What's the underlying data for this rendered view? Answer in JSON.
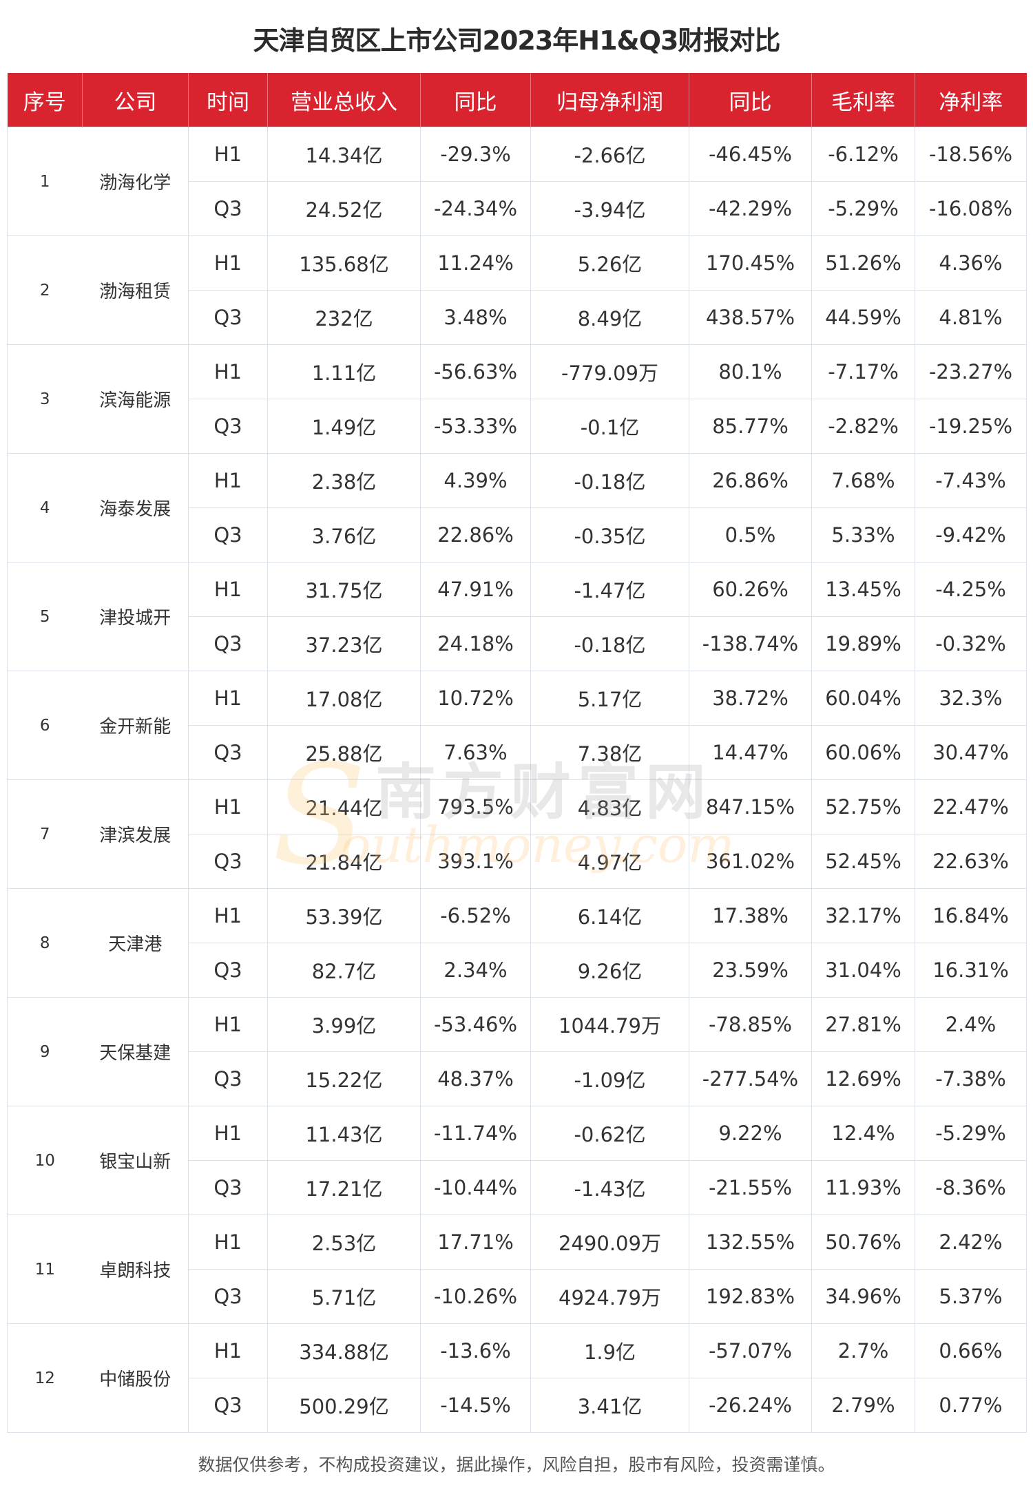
{
  "title": "天津自贸区上市公司2023年H1&Q3财报对比",
  "columns": [
    "序号",
    "公司",
    "时间",
    "营业总收入",
    "同比",
    "归母净利润",
    "同比",
    "毛利率",
    "净利率"
  ],
  "rows": [
    {
      "index": "1",
      "company": "渤海化学",
      "periods": [
        {
          "time": "H1",
          "revenue": "14.34亿",
          "revenue_yoy": "-29.3%",
          "net_profit": "-2.66亿",
          "profit_yoy": "-46.45%",
          "gross_margin": "-6.12%",
          "net_margin": "-18.56%"
        },
        {
          "time": "Q3",
          "revenue": "24.52亿",
          "revenue_yoy": "-24.34%",
          "net_profit": "-3.94亿",
          "profit_yoy": "-42.29%",
          "gross_margin": "-5.29%",
          "net_margin": "-16.08%"
        }
      ]
    },
    {
      "index": "2",
      "company": "渤海租赁",
      "periods": [
        {
          "time": "H1",
          "revenue": "135.68亿",
          "revenue_yoy": "11.24%",
          "net_profit": "5.26亿",
          "profit_yoy": "170.45%",
          "gross_margin": "51.26%",
          "net_margin": "4.36%"
        },
        {
          "time": "Q3",
          "revenue": "232亿",
          "revenue_yoy": "3.48%",
          "net_profit": "8.49亿",
          "profit_yoy": "438.57%",
          "gross_margin": "44.59%",
          "net_margin": "4.81%"
        }
      ]
    },
    {
      "index": "3",
      "company": "滨海能源",
      "periods": [
        {
          "time": "H1",
          "revenue": "1.11亿",
          "revenue_yoy": "-56.63%",
          "net_profit": "-779.09万",
          "profit_yoy": "80.1%",
          "gross_margin": "-7.17%",
          "net_margin": "-23.27%"
        },
        {
          "time": "Q3",
          "revenue": "1.49亿",
          "revenue_yoy": "-53.33%",
          "net_profit": "-0.1亿",
          "profit_yoy": "85.77%",
          "gross_margin": "-2.82%",
          "net_margin": "-19.25%"
        }
      ]
    },
    {
      "index": "4",
      "company": "海泰发展",
      "periods": [
        {
          "time": "H1",
          "revenue": "2.38亿",
          "revenue_yoy": "4.39%",
          "net_profit": "-0.18亿",
          "profit_yoy": "26.86%",
          "gross_margin": "7.68%",
          "net_margin": "-7.43%"
        },
        {
          "time": "Q3",
          "revenue": "3.76亿",
          "revenue_yoy": "22.86%",
          "net_profit": "-0.35亿",
          "profit_yoy": "0.5%",
          "gross_margin": "5.33%",
          "net_margin": "-9.42%"
        }
      ]
    },
    {
      "index": "5",
      "company": "津投城开",
      "periods": [
        {
          "time": "H1",
          "revenue": "31.75亿",
          "revenue_yoy": "47.91%",
          "net_profit": "-1.47亿",
          "profit_yoy": "60.26%",
          "gross_margin": "13.45%",
          "net_margin": "-4.25%"
        },
        {
          "time": "Q3",
          "revenue": "37.23亿",
          "revenue_yoy": "24.18%",
          "net_profit": "-0.18亿",
          "profit_yoy": "-138.74%",
          "gross_margin": "19.89%",
          "net_margin": "-0.32%"
        }
      ]
    },
    {
      "index": "6",
      "company": "金开新能",
      "periods": [
        {
          "time": "H1",
          "revenue": "17.08亿",
          "revenue_yoy": "10.72%",
          "net_profit": "5.17亿",
          "profit_yoy": "38.72%",
          "gross_margin": "60.04%",
          "net_margin": "32.3%"
        },
        {
          "time": "Q3",
          "revenue": "25.88亿",
          "revenue_yoy": "7.63%",
          "net_profit": "7.38亿",
          "profit_yoy": "14.47%",
          "gross_margin": "60.06%",
          "net_margin": "30.47%"
        }
      ]
    },
    {
      "index": "7",
      "company": "津滨发展",
      "periods": [
        {
          "time": "H1",
          "revenue": "21.44亿",
          "revenue_yoy": "793.5%",
          "net_profit": "4.83亿",
          "profit_yoy": "847.15%",
          "gross_margin": "52.75%",
          "net_margin": "22.47%"
        },
        {
          "time": "Q3",
          "revenue": "21.84亿",
          "revenue_yoy": "393.1%",
          "net_profit": "4.97亿",
          "profit_yoy": "361.02%",
          "gross_margin": "52.45%",
          "net_margin": "22.63%"
        }
      ]
    },
    {
      "index": "8",
      "company": "天津港",
      "periods": [
        {
          "time": "H1",
          "revenue": "53.39亿",
          "revenue_yoy": "-6.52%",
          "net_profit": "6.14亿",
          "profit_yoy": "17.38%",
          "gross_margin": "32.17%",
          "net_margin": "16.84%"
        },
        {
          "time": "Q3",
          "revenue": "82.7亿",
          "revenue_yoy": "2.34%",
          "net_profit": "9.26亿",
          "profit_yoy": "23.59%",
          "gross_margin": "31.04%",
          "net_margin": "16.31%"
        }
      ]
    },
    {
      "index": "9",
      "company": "天保基建",
      "periods": [
        {
          "time": "H1",
          "revenue": "3.99亿",
          "revenue_yoy": "-53.46%",
          "net_profit": "1044.79万",
          "profit_yoy": "-78.85%",
          "gross_margin": "27.81%",
          "net_margin": "2.4%"
        },
        {
          "time": "Q3",
          "revenue": "15.22亿",
          "revenue_yoy": "48.37%",
          "net_profit": "-1.09亿",
          "profit_yoy": "-277.54%",
          "gross_margin": "12.69%",
          "net_margin": "-7.38%"
        }
      ]
    },
    {
      "index": "10",
      "company": "银宝山新",
      "periods": [
        {
          "time": "H1",
          "revenue": "11.43亿",
          "revenue_yoy": "-11.74%",
          "net_profit": "-0.62亿",
          "profit_yoy": "9.22%",
          "gross_margin": "12.4%",
          "net_margin": "-5.29%"
        },
        {
          "time": "Q3",
          "revenue": "17.21亿",
          "revenue_yoy": "-10.44%",
          "net_profit": "-1.43亿",
          "profit_yoy": "-21.55%",
          "gross_margin": "11.93%",
          "net_margin": "-8.36%"
        }
      ]
    },
    {
      "index": "11",
      "company": "卓朗科技",
      "periods": [
        {
          "time": "H1",
          "revenue": "2.53亿",
          "revenue_yoy": "17.71%",
          "net_profit": "2490.09万",
          "profit_yoy": "132.55%",
          "gross_margin": "50.76%",
          "net_margin": "2.42%"
        },
        {
          "time": "Q3",
          "revenue": "5.71亿",
          "revenue_yoy": "-10.26%",
          "net_profit": "4924.79万",
          "profit_yoy": "192.83%",
          "gross_margin": "34.96%",
          "net_margin": "5.37%"
        }
      ]
    },
    {
      "index": "12",
      "company": "中储股份",
      "periods": [
        {
          "time": "H1",
          "revenue": "334.88亿",
          "revenue_yoy": "-13.6%",
          "net_profit": "1.9亿",
          "profit_yoy": "-57.07%",
          "gross_margin": "2.7%",
          "net_margin": "0.66%"
        },
        {
          "time": "Q3",
          "revenue": "500.29亿",
          "revenue_yoy": "-14.5%",
          "net_profit": "3.41亿",
          "profit_yoy": "-26.24%",
          "gross_margin": "2.79%",
          "net_margin": "0.77%"
        }
      ]
    }
  ],
  "watermark": {
    "cn": "南方财富网",
    "en": "outhmoney.com",
    "s": "S"
  },
  "footer": "数据仅供参考，不构成投资建议，据此操作，风险自担，股市有风险，投资需谨慎。",
  "colors": {
    "header_bg": "#d9232f",
    "grid": "#dde1ea",
    "text": "#333333"
  }
}
